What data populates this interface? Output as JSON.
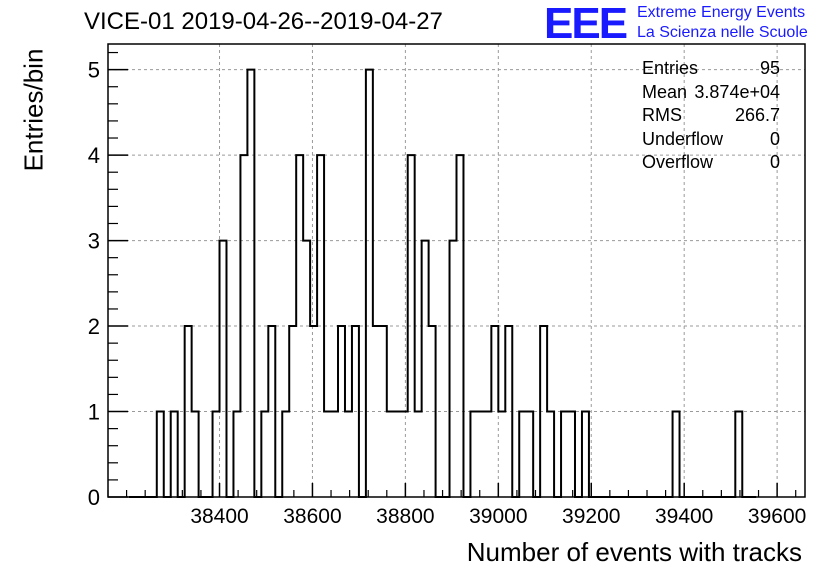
{
  "title": "VICE-01 2019-04-26--2019-04-27",
  "logo": {
    "letters": "EEE",
    "line1": "Extreme Energy Events",
    "line2": "La Scienza nelle Scuole",
    "color": "#1a1aff"
  },
  "stats": [
    {
      "label": "Entries",
      "value": "95"
    },
    {
      "label": "Mean",
      "value": "3.874e+04"
    },
    {
      "label": "RMS",
      "value": "266.7"
    },
    {
      "label": "Underflow",
      "value": "0"
    },
    {
      "label": "Overflow",
      "value": "0"
    }
  ],
  "chart_data": {
    "type": "bar",
    "style": "step-histogram",
    "title": "VICE-01 2019-04-26--2019-04-27",
    "xlabel": "Number of events with tracks",
    "ylabel": "Entries/bin",
    "xlim": [
      38160,
      39660
    ],
    "ylim": [
      0,
      5.3
    ],
    "bin_width": 15,
    "x_ticks": [
      38400,
      38600,
      38800,
      39000,
      39200,
      39400,
      39600
    ],
    "y_ticks": [
      0,
      1,
      2,
      3,
      4,
      5
    ],
    "grid": true,
    "legend": "none",
    "line_color": "#000000",
    "bins": [
      {
        "x": 38205,
        "value": 0
      },
      {
        "x": 38220,
        "value": 0
      },
      {
        "x": 38235,
        "value": 0
      },
      {
        "x": 38250,
        "value": 0
      },
      {
        "x": 38265,
        "value": 1
      },
      {
        "x": 38280,
        "value": 0
      },
      {
        "x": 38295,
        "value": 1
      },
      {
        "x": 38310,
        "value": 0
      },
      {
        "x": 38325,
        "value": 2
      },
      {
        "x": 38340,
        "value": 1
      },
      {
        "x": 38355,
        "value": 0
      },
      {
        "x": 38370,
        "value": 0
      },
      {
        "x": 38385,
        "value": 1
      },
      {
        "x": 38400,
        "value": 3
      },
      {
        "x": 38415,
        "value": 0
      },
      {
        "x": 38430,
        "value": 1
      },
      {
        "x": 38445,
        "value": 4
      },
      {
        "x": 38460,
        "value": 5
      },
      {
        "x": 38475,
        "value": 0
      },
      {
        "x": 38490,
        "value": 1
      },
      {
        "x": 38505,
        "value": 2
      },
      {
        "x": 38520,
        "value": 0
      },
      {
        "x": 38535,
        "value": 1
      },
      {
        "x": 38550,
        "value": 2
      },
      {
        "x": 38565,
        "value": 4
      },
      {
        "x": 38580,
        "value": 3
      },
      {
        "x": 38595,
        "value": 2
      },
      {
        "x": 38610,
        "value": 4
      },
      {
        "x": 38625,
        "value": 1
      },
      {
        "x": 38640,
        "value": 1
      },
      {
        "x": 38655,
        "value": 2
      },
      {
        "x": 38670,
        "value": 1
      },
      {
        "x": 38685,
        "value": 2
      },
      {
        "x": 38700,
        "value": 0
      },
      {
        "x": 38715,
        "value": 5
      },
      {
        "x": 38730,
        "value": 2
      },
      {
        "x": 38745,
        "value": 2
      },
      {
        "x": 38760,
        "value": 1
      },
      {
        "x": 38775,
        "value": 1
      },
      {
        "x": 38790,
        "value": 1
      },
      {
        "x": 38805,
        "value": 4
      },
      {
        "x": 38820,
        "value": 1
      },
      {
        "x": 38835,
        "value": 3
      },
      {
        "x": 38850,
        "value": 2
      },
      {
        "x": 38865,
        "value": 0
      },
      {
        "x": 38880,
        "value": 0
      },
      {
        "x": 38895,
        "value": 3
      },
      {
        "x": 38910,
        "value": 4
      },
      {
        "x": 38925,
        "value": 0
      },
      {
        "x": 38940,
        "value": 1
      },
      {
        "x": 38955,
        "value": 1
      },
      {
        "x": 38970,
        "value": 1
      },
      {
        "x": 38985,
        "value": 2
      },
      {
        "x": 39000,
        "value": 1
      },
      {
        "x": 39015,
        "value": 2
      },
      {
        "x": 39030,
        "value": 0
      },
      {
        "x": 39045,
        "value": 1
      },
      {
        "x": 39060,
        "value": 1
      },
      {
        "x": 39075,
        "value": 0
      },
      {
        "x": 39090,
        "value": 2
      },
      {
        "x": 39105,
        "value": 1
      },
      {
        "x": 39120,
        "value": 0
      },
      {
        "x": 39135,
        "value": 1
      },
      {
        "x": 39150,
        "value": 1
      },
      {
        "x": 39165,
        "value": 0
      },
      {
        "x": 39180,
        "value": 1
      },
      {
        "x": 39195,
        "value": 0
      },
      {
        "x": 39210,
        "value": 0
      },
      {
        "x": 39225,
        "value": 0
      },
      {
        "x": 39240,
        "value": 0
      },
      {
        "x": 39255,
        "value": 0
      },
      {
        "x": 39270,
        "value": 0
      },
      {
        "x": 39285,
        "value": 0
      },
      {
        "x": 39300,
        "value": 0
      },
      {
        "x": 39315,
        "value": 0
      },
      {
        "x": 39330,
        "value": 0
      },
      {
        "x": 39345,
        "value": 0
      },
      {
        "x": 39360,
        "value": 0
      },
      {
        "x": 39375,
        "value": 1
      },
      {
        "x": 39390,
        "value": 0
      },
      {
        "x": 39405,
        "value": 0
      },
      {
        "x": 39420,
        "value": 0
      },
      {
        "x": 39435,
        "value": 0
      },
      {
        "x": 39450,
        "value": 0
      },
      {
        "x": 39465,
        "value": 0
      },
      {
        "x": 39480,
        "value": 0
      },
      {
        "x": 39495,
        "value": 0
      },
      {
        "x": 39510,
        "value": 1
      },
      {
        "x": 39525,
        "value": 0
      },
      {
        "x": 39540,
        "value": 0
      }
    ]
  }
}
